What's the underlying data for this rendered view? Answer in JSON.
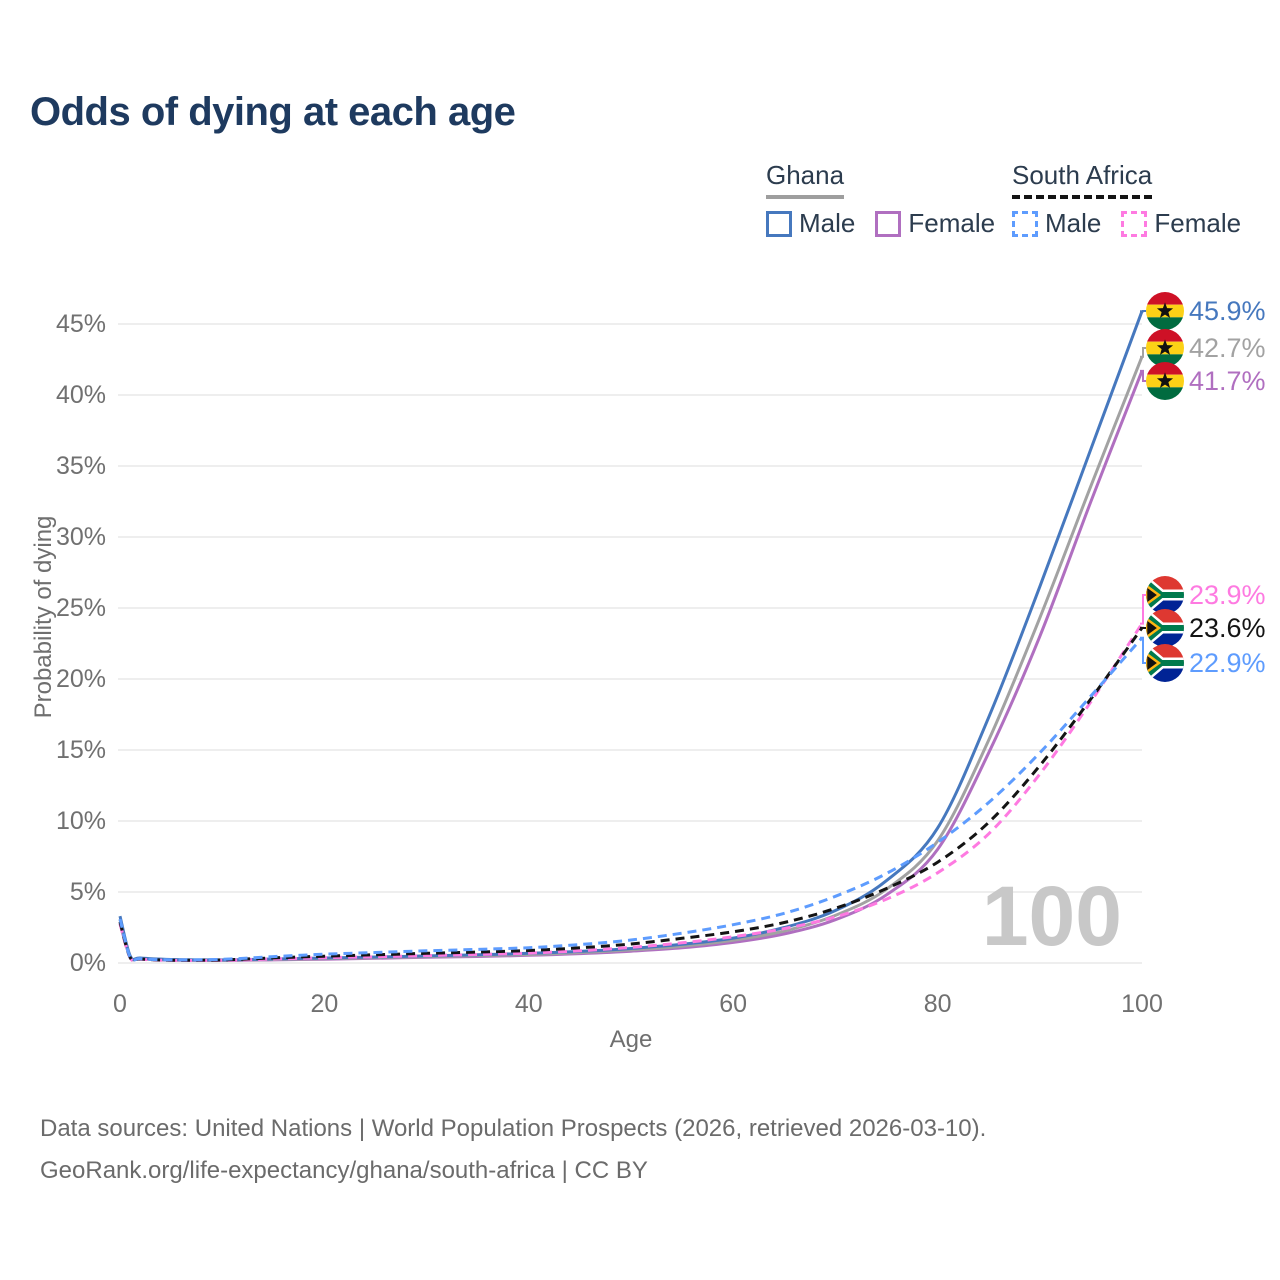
{
  "title": "Odds of dying at each age",
  "legend": {
    "groups": [
      {
        "name": "Ghana",
        "line_style": "solid",
        "underline_color": "#9e9e9e",
        "items": [
          {
            "label": "Male",
            "color": "#4678be"
          },
          {
            "label": "Female",
            "color": "#b06fc0"
          }
        ]
      },
      {
        "name": "South Africa",
        "line_style": "dashed",
        "underline_color": "#141414",
        "items": [
          {
            "label": "Male",
            "color": "#5e9cfe"
          },
          {
            "label": "Female",
            "color": "#fe7ae1"
          }
        ]
      }
    ]
  },
  "axes": {
    "x_title": "Age",
    "y_title": "Probability of dying"
  },
  "watermark": "100",
  "footer": {
    "line1": "Data sources: United Nations | World Population Prospects (2026, retrieved 2026-03-10).",
    "line2": "GeoRank.org/life-expectancy/ghana/south-africa | CC BY"
  },
  "chart_data": {
    "type": "line",
    "title": "Odds of dying at each age",
    "xlabel": "Age",
    "ylabel": "Probability of dying",
    "xlim": [
      0,
      100
    ],
    "ylim": [
      0,
      46
    ],
    "xticks": [
      0,
      20,
      40,
      60,
      80,
      100
    ],
    "yticks": [
      0,
      5,
      10,
      15,
      20,
      25,
      30,
      35,
      40,
      45
    ],
    "ytick_suffix": "%",
    "grid": "horizontal",
    "legend_position": "top-right",
    "watermark": "100",
    "x": [
      0,
      1,
      2,
      5,
      10,
      15,
      20,
      25,
      30,
      35,
      40,
      45,
      50,
      55,
      60,
      65,
      70,
      75,
      80,
      85,
      90,
      95,
      100
    ],
    "series": [
      {
        "name": "Ghana Male",
        "country": "Ghana",
        "sex": "Male",
        "style": "solid",
        "color": "#4678be",
        "flag": "ghana",
        "end_label": "45.9%",
        "end_value": 45.9,
        "values": [
          3.3,
          0.5,
          0.35,
          0.25,
          0.22,
          0.28,
          0.35,
          0.42,
          0.5,
          0.58,
          0.68,
          0.82,
          1.02,
          1.32,
          1.75,
          2.5,
          3.7,
          5.8,
          9.5,
          17.3,
          26.5,
          36.2,
          45.9
        ]
      },
      {
        "name": "Ghana Both sexes",
        "country": "Ghana",
        "sex": "Both",
        "style": "solid",
        "color": "#a2a2a2",
        "flag": "ghana",
        "end_label": "42.7%",
        "end_value": 42.7,
        "values": [
          3.05,
          0.46,
          0.32,
          0.23,
          0.2,
          0.25,
          0.31,
          0.38,
          0.45,
          0.52,
          0.6,
          0.73,
          0.92,
          1.18,
          1.6,
          2.25,
          3.35,
          5.2,
          8.6,
          15.7,
          24.3,
          33.6,
          42.7
        ]
      },
      {
        "name": "Ghana Female",
        "country": "Ghana",
        "sex": "Female",
        "style": "solid",
        "color": "#b06fc0",
        "flag": "ghana",
        "end_label": "41.7%",
        "end_value": 41.7,
        "values": [
          2.8,
          0.42,
          0.3,
          0.2,
          0.18,
          0.22,
          0.27,
          0.33,
          0.4,
          0.46,
          0.54,
          0.66,
          0.83,
          1.07,
          1.45,
          2.05,
          3.05,
          4.8,
          8.0,
          14.8,
          23.0,
          32.5,
          41.7
        ]
      },
      {
        "name": "South Africa Female",
        "country": "South Africa",
        "sex": "Female",
        "style": "dashed",
        "color": "#fe7ae1",
        "flag": "south-africa",
        "end_label": "23.9%",
        "end_value": 23.9,
        "values": [
          2.75,
          0.36,
          0.26,
          0.18,
          0.19,
          0.28,
          0.37,
          0.44,
          0.52,
          0.6,
          0.7,
          0.86,
          1.1,
          1.42,
          1.85,
          2.42,
          3.25,
          4.5,
          6.35,
          9.1,
          13.3,
          18.4,
          23.9
        ]
      },
      {
        "name": "South Africa Both sexes",
        "country": "South Africa",
        "sex": "Both",
        "style": "dashed",
        "color": "#141414",
        "flag": "south-africa",
        "end_label": "23.6%",
        "end_value": 23.6,
        "values": [
          2.9,
          0.38,
          0.28,
          0.2,
          0.22,
          0.36,
          0.48,
          0.58,
          0.68,
          0.77,
          0.88,
          1.07,
          1.34,
          1.74,
          2.2,
          2.85,
          3.85,
          5.25,
          7.1,
          9.9,
          13.9,
          18.6,
          23.6
        ]
      },
      {
        "name": "South Africa Male",
        "country": "South Africa",
        "sex": "Male",
        "style": "dashed",
        "color": "#5e9cfe",
        "flag": "south-africa",
        "end_label": "22.9%",
        "end_value": 22.9,
        "values": [
          3.1,
          0.4,
          0.3,
          0.22,
          0.26,
          0.45,
          0.62,
          0.74,
          0.86,
          0.96,
          1.08,
          1.3,
          1.62,
          2.1,
          2.7,
          3.5,
          4.7,
          6.3,
          8.5,
          11.3,
          14.8,
          18.8,
          22.9
        ]
      }
    ]
  }
}
